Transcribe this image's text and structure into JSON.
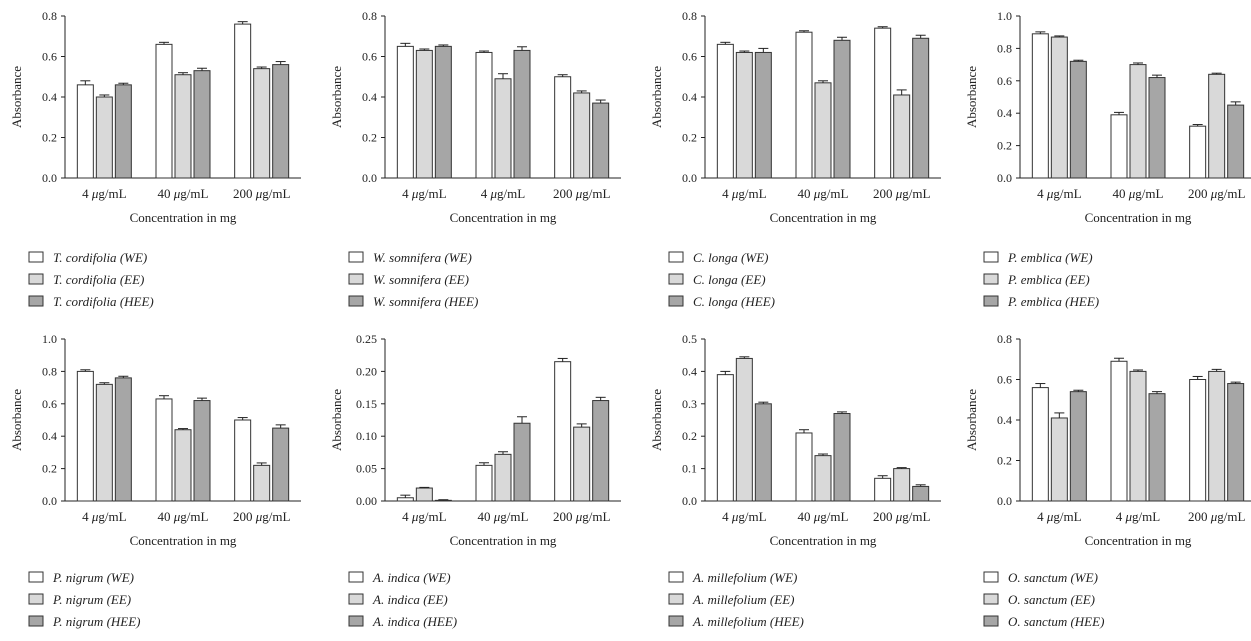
{
  "colors": {
    "WE": "#ffffff",
    "EE": "#d9d9d9",
    "HEE": "#a6a6a6"
  },
  "chart_data": [
    {
      "type": "bar",
      "xlabel": "Concentration in mg",
      "ylabel": "Absorbance",
      "ylim": [
        0,
        0.8
      ],
      "yticks": [
        "0.0",
        "0.2",
        "0.4",
        "0.6",
        "0.8"
      ],
      "categories": [
        "4 μg/mL",
        "40 μg/mL",
        "200 μg/mL"
      ],
      "legend_species": "T. cordifolia",
      "series": [
        {
          "name": "(WE)",
          "values": [
            0.46,
            0.66,
            0.76
          ],
          "errors": [
            0.02,
            0.01,
            0.012
          ]
        },
        {
          "name": "(EE)",
          "values": [
            0.4,
            0.51,
            0.54
          ],
          "errors": [
            0.01,
            0.01,
            0.008
          ]
        },
        {
          "name": "(HEE)",
          "values": [
            0.46,
            0.53,
            0.56
          ],
          "errors": [
            0.008,
            0.012,
            0.015
          ]
        }
      ]
    },
    {
      "type": "bar",
      "xlabel": "Concentration in mg",
      "ylabel": "Absorbance",
      "ylim": [
        0,
        0.8
      ],
      "yticks": [
        "0.0",
        "0.2",
        "0.4",
        "0.6",
        "0.8"
      ],
      "categories": [
        "4 μg/mL",
        "4 μg/mL",
        "200 μg/mL"
      ],
      "legend_species": "W. somnifera",
      "series": [
        {
          "name": "(WE)",
          "values": [
            0.65,
            0.62,
            0.5
          ],
          "errors": [
            0.015,
            0.007,
            0.01
          ]
        },
        {
          "name": "(EE)",
          "values": [
            0.63,
            0.49,
            0.42
          ],
          "errors": [
            0.007,
            0.025,
            0.01
          ]
        },
        {
          "name": "(HEE)",
          "values": [
            0.65,
            0.63,
            0.37
          ],
          "errors": [
            0.007,
            0.018,
            0.015
          ]
        }
      ]
    },
    {
      "type": "bar",
      "xlabel": "Concentration in mg",
      "ylabel": "Absorbance",
      "ylim": [
        0,
        0.8
      ],
      "yticks": [
        "0.0",
        "0.2",
        "0.4",
        "0.6",
        "0.8"
      ],
      "categories": [
        "4 μg/mL",
        "40 μg/mL",
        "200 μg/mL"
      ],
      "legend_species": "C. longa",
      "series": [
        {
          "name": "(WE)",
          "values": [
            0.66,
            0.72,
            0.74
          ],
          "errors": [
            0.01,
            0.007,
            0.007
          ]
        },
        {
          "name": "(EE)",
          "values": [
            0.62,
            0.47,
            0.41
          ],
          "errors": [
            0.007,
            0.01,
            0.025
          ]
        },
        {
          "name": "(HEE)",
          "values": [
            0.62,
            0.68,
            0.69
          ],
          "errors": [
            0.02,
            0.015,
            0.015
          ]
        }
      ]
    },
    {
      "type": "bar",
      "xlabel": "Concentration in mg",
      "ylabel": "Absorbance",
      "ylim": [
        0,
        1.0
      ],
      "yticks": [
        "0.0",
        "0.2",
        "0.4",
        "0.6",
        "0.8",
        "1.0"
      ],
      "categories": [
        "4 μg/mL",
        "40 μg/mL",
        "200 μg/mL"
      ],
      "legend_species": "P. emblica",
      "series": [
        {
          "name": "(WE)",
          "values": [
            0.89,
            0.39,
            0.32
          ],
          "errors": [
            0.012,
            0.015,
            0.01
          ]
        },
        {
          "name": "(EE)",
          "values": [
            0.87,
            0.7,
            0.64
          ],
          "errors": [
            0.007,
            0.01,
            0.007
          ]
        },
        {
          "name": "(HEE)",
          "values": [
            0.72,
            0.62,
            0.45
          ],
          "errors": [
            0.007,
            0.015,
            0.02
          ]
        }
      ]
    },
    {
      "type": "bar",
      "xlabel": "Concentration in mg",
      "ylabel": "Absorbance",
      "ylim": [
        0,
        1.0
      ],
      "yticks": [
        "0.0",
        "0.2",
        "0.4",
        "0.6",
        "0.8",
        "1.0"
      ],
      "categories": [
        "4 μg/mL",
        "40 μg/mL",
        "200 μg/mL"
      ],
      "legend_species": "P. nigrum",
      "series": [
        {
          "name": "(WE)",
          "values": [
            0.8,
            0.63,
            0.5
          ],
          "errors": [
            0.01,
            0.02,
            0.015
          ]
        },
        {
          "name": "(EE)",
          "values": [
            0.72,
            0.44,
            0.22
          ],
          "errors": [
            0.01,
            0.007,
            0.015
          ]
        },
        {
          "name": "(HEE)",
          "values": [
            0.76,
            0.62,
            0.45
          ],
          "errors": [
            0.01,
            0.015,
            0.02
          ]
        }
      ]
    },
    {
      "type": "bar",
      "xlabel": "Concentration in mg",
      "ylabel": "Absorbance",
      "ylim": [
        0,
        0.25
      ],
      "yticks": [
        "0.00",
        "0.05",
        "0.10",
        "0.15",
        "0.20",
        "0.25"
      ],
      "categories": [
        "4 μg/mL",
        "40 μg/mL",
        "200 μg/mL"
      ],
      "legend_species": "A. indica",
      "series": [
        {
          "name": "(WE)",
          "values": [
            0.005,
            0.055,
            0.215
          ],
          "errors": [
            0.004,
            0.004,
            0.005
          ]
        },
        {
          "name": "(EE)",
          "values": [
            0.02,
            0.072,
            0.114
          ],
          "errors": [
            0.001,
            0.004,
            0.005
          ]
        },
        {
          "name": "(HEE)",
          "values": [
            0.001,
            0.12,
            0.155
          ],
          "errors": [
            0.001,
            0.01,
            0.005
          ]
        }
      ]
    },
    {
      "type": "bar",
      "xlabel": "Concentration in mg",
      "ylabel": "Absorbance",
      "ylim": [
        0,
        0.5
      ],
      "yticks": [
        "0.0",
        "0.1",
        "0.2",
        "0.3",
        "0.4",
        "0.5"
      ],
      "categories": [
        "4 μg/mL",
        "40 μg/mL",
        "200 μg/mL"
      ],
      "legend_species": "A. millefolium",
      "series": [
        {
          "name": "(WE)",
          "values": [
            0.39,
            0.21,
            0.07
          ],
          "errors": [
            0.01,
            0.01,
            0.008
          ]
        },
        {
          "name": "(EE)",
          "values": [
            0.44,
            0.14,
            0.1
          ],
          "errors": [
            0.005,
            0.005,
            0.003
          ]
        },
        {
          "name": "(HEE)",
          "values": [
            0.3,
            0.27,
            0.045
          ],
          "errors": [
            0.005,
            0.005,
            0.005
          ]
        }
      ]
    },
    {
      "type": "bar",
      "xlabel": "Concentration in mg",
      "ylabel": "Absorbance",
      "ylim": [
        0,
        0.8
      ],
      "yticks": [
        "0.0",
        "0.2",
        "0.4",
        "0.6",
        "0.8"
      ],
      "categories": [
        "4 μg/mL",
        "4 μg/mL",
        "200 μg/mL"
      ],
      "legend_species": "O. sanctum",
      "series": [
        {
          "name": "(WE)",
          "values": [
            0.56,
            0.69,
            0.6
          ],
          "errors": [
            0.02,
            0.015,
            0.015
          ]
        },
        {
          "name": "(EE)",
          "values": [
            0.41,
            0.64,
            0.64
          ],
          "errors": [
            0.025,
            0.007,
            0.01
          ]
        },
        {
          "name": "(HEE)",
          "values": [
            0.54,
            0.53,
            0.58
          ],
          "errors": [
            0.007,
            0.01,
            0.007
          ]
        }
      ]
    }
  ]
}
